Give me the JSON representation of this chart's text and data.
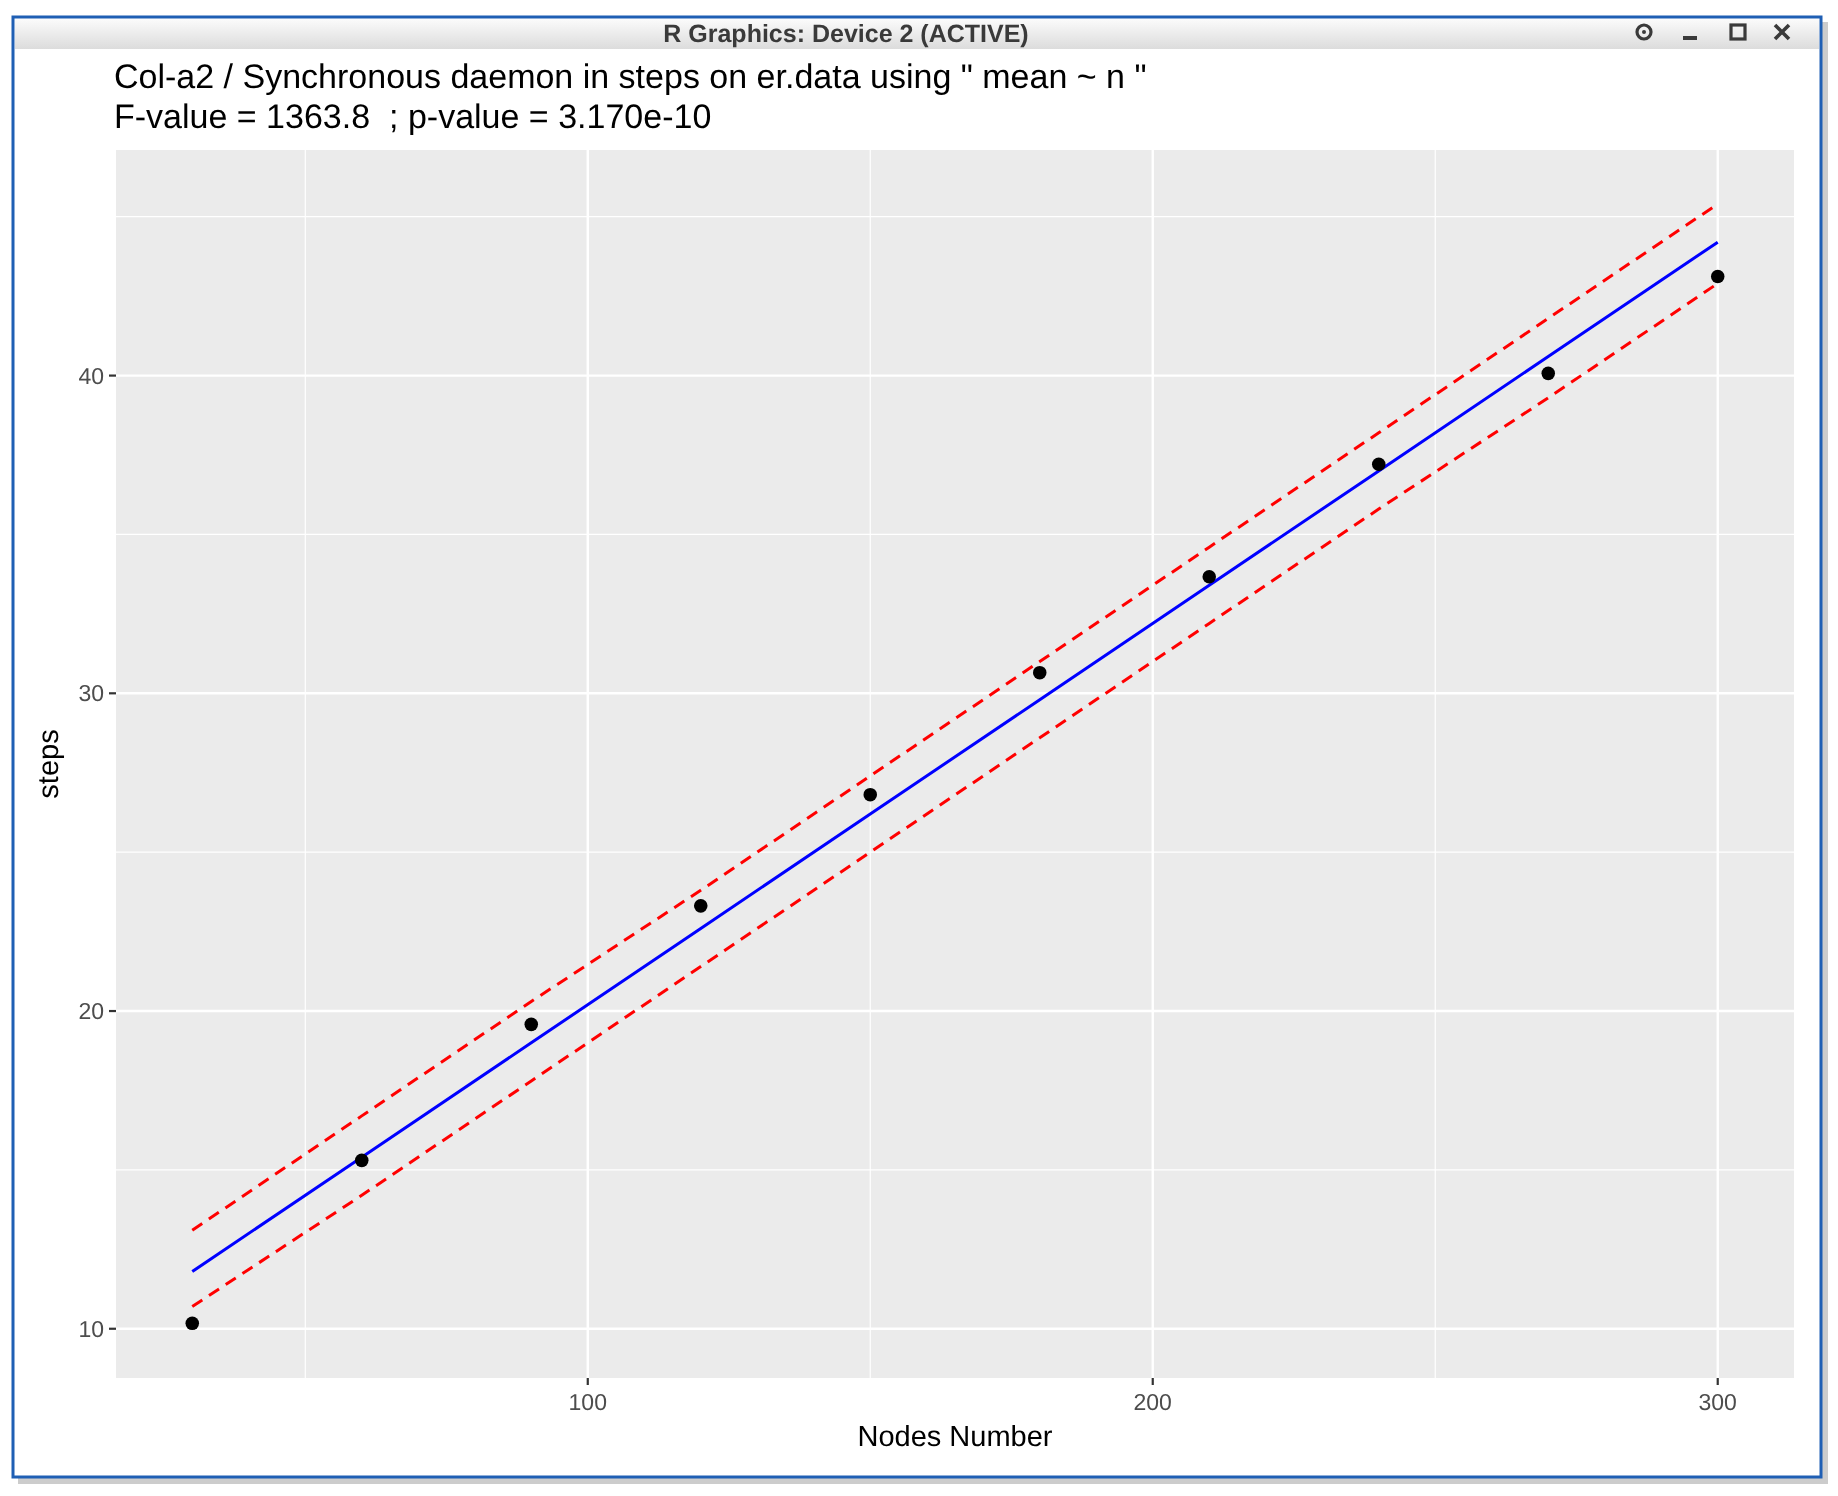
{
  "chart_data": {
    "type": "scatter",
    "title": "Col-a2 / Synchronous daemon in steps on er.data using \" mean ~ n \"",
    "subtitle": "F-value = 1363.8  ; p-value = 3.170e-10",
    "xlabel": "Nodes Number",
    "ylabel": "steps",
    "annotations": [
      "R Graphics: Device 2 (ACTIVE)"
    ],
    "x": [
      30,
      60,
      90,
      120,
      150,
      180,
      210,
      240,
      270,
      300
    ],
    "series": [
      {
        "type": "scatter",
        "color": "#000000",
        "marker": "circle",
        "values": [
          10.17,
          15.3,
          19.58,
          23.31,
          26.81,
          30.65,
          33.67,
          37.21,
          40.07,
          43.12
        ]
      },
      {
        "type": "line",
        "color": "#0000ff",
        "line_style": "solid",
        "values": [
          11.8,
          15.4,
          19.0,
          22.6,
          26.2,
          29.8,
          33.4,
          37.0,
          40.6,
          44.2
        ]
      },
      {
        "type": "line",
        "color": "#ff0000",
        "line_style": "dashed",
        "values": [
          13.1,
          16.7,
          20.3,
          23.8,
          27.4,
          31.0,
          34.6,
          38.2,
          41.8,
          45.4
        ]
      },
      {
        "type": "line",
        "color": "#ff0000",
        "line_style": "dashed",
        "values": [
          10.7,
          14.2,
          17.8,
          21.4,
          25.0,
          28.6,
          32.2,
          35.8,
          39.3,
          42.9
        ]
      }
    ],
    "xlim": [
      16.5,
      313.5
    ],
    "ylim": [
      8.45,
      47.1
    ],
    "xticks": [
      {
        "value": 50,
        "label": null
      },
      100,
      {
        "value": 150,
        "label": null
      },
      200,
      {
        "value": 250,
        "label": null
      },
      300
    ],
    "yticks": [
      10,
      {
        "value": 15,
        "label": null
      },
      20,
      {
        "value": 25,
        "label": null
      },
      30,
      {
        "value": 35,
        "label": null
      },
      40,
      {
        "value": 45,
        "label": null
      }
    ],
    "grid": true
  }
}
